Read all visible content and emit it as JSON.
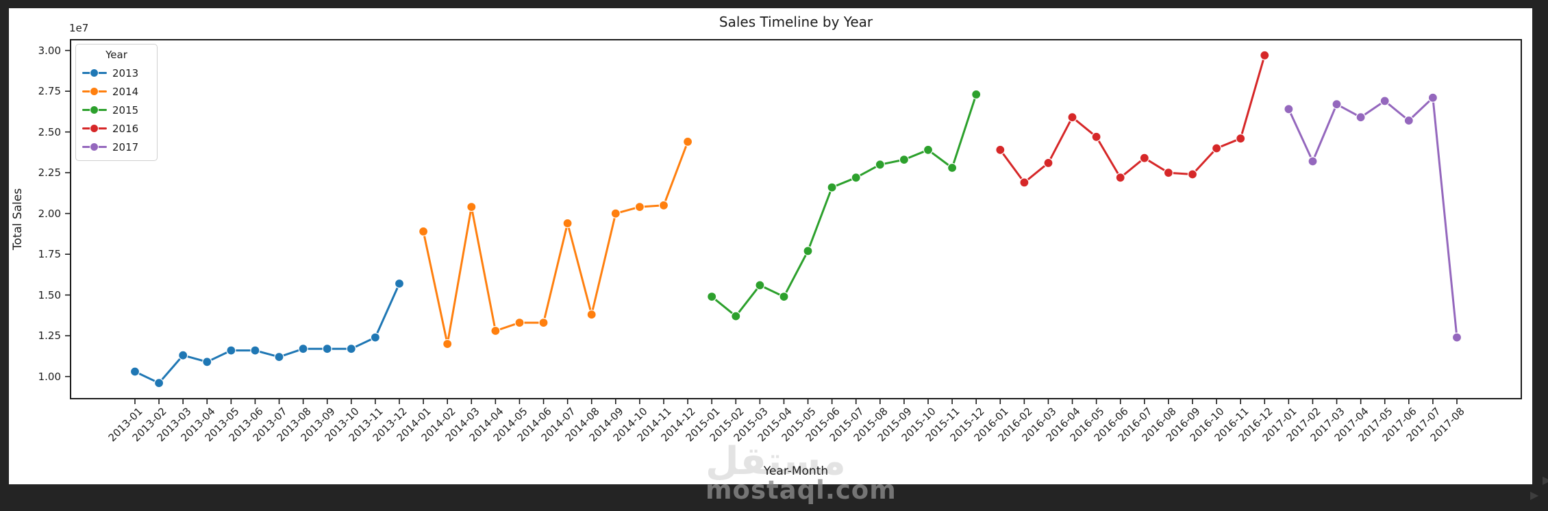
{
  "chart_data": {
    "type": "line",
    "title": "Sales Timeline by Year",
    "xlabel": "Year-Month",
    "ylabel": "Total Sales",
    "y_offset_label": "1e7",
    "legend_title": "Year",
    "legend_position": "upper left",
    "grid": false,
    "ylim": [
      8600000,
      30700000
    ],
    "y_ticks": [
      "1.00",
      "1.25",
      "1.50",
      "1.75",
      "2.00",
      "2.25",
      "2.50",
      "2.75",
      "3.00"
    ],
    "y_tick_values": [
      10000000,
      12500000,
      15000000,
      17500000,
      20000000,
      22500000,
      25000000,
      27500000,
      30000000
    ],
    "x_categories": [
      "2013-01",
      "2013-02",
      "2013-03",
      "2013-04",
      "2013-05",
      "2013-06",
      "2013-07",
      "2013-08",
      "2013-09",
      "2013-10",
      "2013-11",
      "2013-12",
      "2014-01",
      "2014-02",
      "2014-03",
      "2014-04",
      "2014-05",
      "2014-06",
      "2014-07",
      "2014-08",
      "2014-09",
      "2014-10",
      "2014-11",
      "2014-12",
      "2015-01",
      "2015-02",
      "2015-03",
      "2015-04",
      "2015-05",
      "2015-06",
      "2015-07",
      "2015-08",
      "2015-09",
      "2015-10",
      "2015-11",
      "2015-12",
      "2016-01",
      "2016-02",
      "2016-03",
      "2016-04",
      "2016-05",
      "2016-06",
      "2016-07",
      "2016-08",
      "2016-09",
      "2016-10",
      "2016-11",
      "2016-12",
      "2017-01",
      "2017-02",
      "2017-03",
      "2017-04",
      "2017-05",
      "2017-06",
      "2017-07",
      "2017-08"
    ],
    "series": [
      {
        "name": "2013",
        "color": "#1f77b4",
        "x": [
          "2013-01",
          "2013-02",
          "2013-03",
          "2013-04",
          "2013-05",
          "2013-06",
          "2013-07",
          "2013-08",
          "2013-09",
          "2013-10",
          "2013-11",
          "2013-12"
        ],
        "values": [
          10300000,
          9600000,
          11300000,
          10900000,
          11600000,
          11600000,
          11200000,
          11700000,
          11700000,
          11700000,
          12400000,
          15700000
        ]
      },
      {
        "name": "2014",
        "color": "#ff7f0e",
        "x": [
          "2014-01",
          "2014-02",
          "2014-03",
          "2014-04",
          "2014-05",
          "2014-06",
          "2014-07",
          "2014-08",
          "2014-09",
          "2014-10",
          "2014-11",
          "2014-12"
        ],
        "values": [
          18900000,
          12000000,
          20400000,
          12800000,
          13300000,
          13300000,
          19400000,
          13800000,
          20000000,
          20400000,
          20500000,
          24400000
        ]
      },
      {
        "name": "2015",
        "color": "#2ca02c",
        "x": [
          "2015-01",
          "2015-02",
          "2015-03",
          "2015-04",
          "2015-05",
          "2015-06",
          "2015-07",
          "2015-08",
          "2015-09",
          "2015-10",
          "2015-11",
          "2015-12"
        ],
        "values": [
          14900000,
          13700000,
          15600000,
          14900000,
          17700000,
          21600000,
          22200000,
          23000000,
          23300000,
          23900000,
          22800000,
          27300000
        ]
      },
      {
        "name": "2016",
        "color": "#d62728",
        "x": [
          "2016-01",
          "2016-02",
          "2016-03",
          "2016-04",
          "2016-05",
          "2016-06",
          "2016-07",
          "2016-08",
          "2016-09",
          "2016-10",
          "2016-11",
          "2016-12"
        ],
        "values": [
          23900000,
          21900000,
          23100000,
          25900000,
          24700000,
          22200000,
          23400000,
          22500000,
          22400000,
          24000000,
          24600000,
          29700000
        ]
      },
      {
        "name": "2017",
        "color": "#9467bd",
        "x": [
          "2017-01",
          "2017-02",
          "2017-03",
          "2017-04",
          "2017-05",
          "2017-06",
          "2017-07",
          "2017-08"
        ],
        "values": [
          26400000,
          23200000,
          26700000,
          25900000,
          26900000,
          25700000,
          27100000,
          12400000
        ]
      }
    ]
  },
  "watermarks": {
    "arabic": "مستقل",
    "site": "mostaql.com"
  },
  "icons": {
    "play": "▶"
  },
  "style": {
    "figure_bg": "#ffffff",
    "outer_bg": "#242424",
    "spine_color": "#1a1a1a",
    "text_color": "#1a1a1a"
  }
}
